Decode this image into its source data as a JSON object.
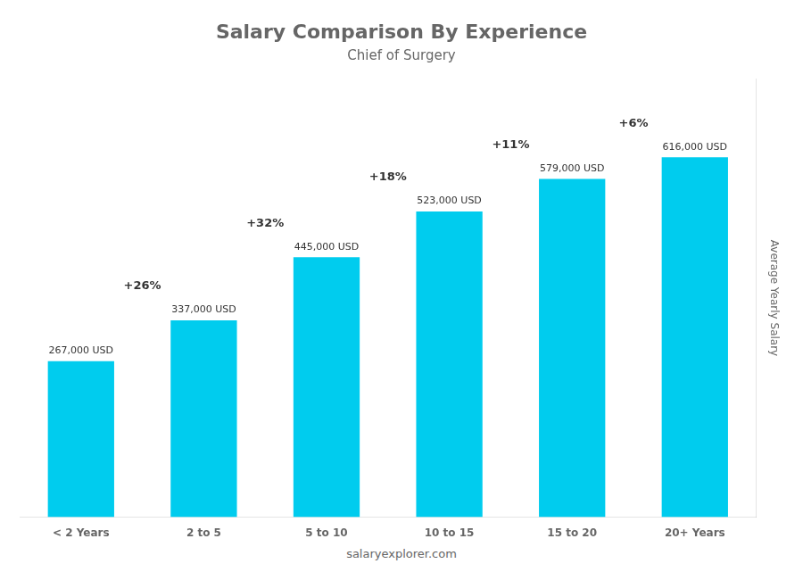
{
  "chart_data": {
    "type": "bar",
    "title": "Salary Comparison By Experience",
    "subtitle": "Chief of Surgery",
    "categories": [
      "< 2 Years",
      "2 to 5",
      "5 to 10",
      "10 to 15",
      "15 to 20",
      "20+ Years"
    ],
    "values": [
      267000,
      337000,
      445000,
      523000,
      579000,
      616000
    ],
    "value_labels": [
      "267,000 USD",
      "337,000 USD",
      "445,000 USD",
      "523,000 USD",
      "579,000 USD",
      "616,000 USD"
    ],
    "data_labels": true,
    "annotations": [
      "+26%",
      "+32%",
      "+18%",
      "+11%",
      "+6%"
    ],
    "ylabel": "Average Yearly Salary",
    "footer": "salaryexplorer.com",
    "color": "#00ccee",
    "ylim": [
      0,
      750000
    ],
    "grid": false,
    "tick_labels": "x"
  }
}
